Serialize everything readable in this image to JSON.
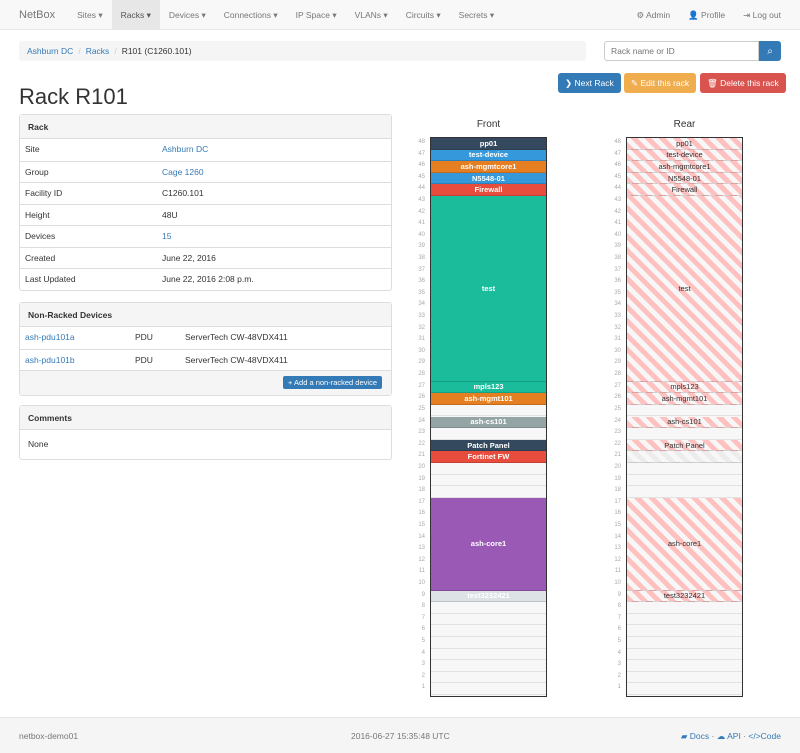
{
  "nav": {
    "brand": "NetBox",
    "items": [
      "Sites ▾",
      "Racks ▾",
      "Devices ▾",
      "Connections ▾",
      "IP Space ▾",
      "VLANs ▾",
      "Circuits ▾",
      "Secrets ▾"
    ],
    "active": 1,
    "admin": "Admin",
    "profile": "Profile",
    "logout": "Log out"
  },
  "breadcrumb": [
    "Ashburn DC",
    "Racks",
    "R101 (C1260.101)"
  ],
  "search": {
    "placeholder": "Rack name or ID"
  },
  "buttons": {
    "next": "Next Rack",
    "edit": "Edit this rack",
    "delete": "Delete this rack"
  },
  "title": "Rack R101",
  "rack_panel": {
    "heading": "Rack",
    "rows": [
      [
        "Site",
        "Ashburn DC"
      ],
      [
        "Group",
        "Cage 1260"
      ],
      [
        "Facility ID",
        "C1260.101"
      ],
      [
        "Height",
        "48U"
      ],
      [
        "Devices",
        "15"
      ],
      [
        "Created",
        "June 22, 2016"
      ],
      [
        "Last Updated",
        "June 22, 2016 2:08 p.m."
      ]
    ]
  },
  "nonracked": {
    "heading": "Non-Racked Devices",
    "rows": [
      [
        "ash-pdu101a",
        "PDU",
        "ServerTech CW-48VDX411"
      ],
      [
        "ash-pdu101b",
        "PDU",
        "ServerTech CW-48VDX411"
      ]
    ],
    "add": "+ Add a non-racked device"
  },
  "comments": {
    "heading": "Comments",
    "body": "None"
  },
  "elevation": {
    "front_label": "Front",
    "rear_label": "Rear",
    "units": 48,
    "devices": [
      {
        "name": "pp01",
        "top": 48,
        "height": 1,
        "color": "#34495e"
      },
      {
        "name": "test-device",
        "top": 47,
        "height": 1,
        "color": "#3498db"
      },
      {
        "name": "ash-mgmtcore1",
        "top": 46,
        "height": 1,
        "color": "#e67e22"
      },
      {
        "name": "N5548-01",
        "top": 45,
        "height": 1,
        "color": "#3498db"
      },
      {
        "name": "Firewall",
        "top": 44,
        "height": 1,
        "color": "#e74c3c"
      },
      {
        "name": "test",
        "top": 43,
        "height": 16,
        "color": "#1abc9c"
      },
      {
        "name": "mpls123",
        "top": 27,
        "height": 1,
        "color": "#1abc9c"
      },
      {
        "name": "ash-mgmt101",
        "top": 26,
        "height": 1,
        "color": "#e67e22"
      },
      {
        "name": "ash-cs101",
        "top": 24,
        "height": 1,
        "color": "#95a5a6"
      },
      {
        "name": "Patch Panel",
        "top": 22,
        "height": 1,
        "color": "#34495e"
      },
      {
        "name": "Fortinet FW",
        "top": 21,
        "height": 1,
        "color": "#e74c3c",
        "rear_hidden": true
      },
      {
        "name": "ash-core1",
        "top": 17,
        "height": 8,
        "color": "#9b59b6"
      },
      {
        "name": "test3232421",
        "top": 9,
        "height": 1,
        "color": "#dde2e6"
      }
    ]
  },
  "footer": {
    "host": "netbox-demo01",
    "time": "2016-06-27 15:35:48 UTC",
    "docs": "Docs",
    "api": "API",
    "code": "Code"
  }
}
